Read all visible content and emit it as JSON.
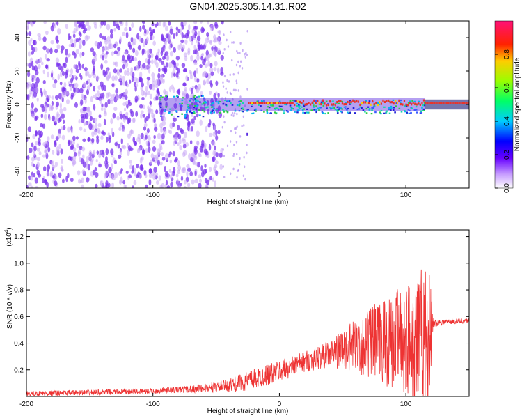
{
  "title": "GN04.2025.305.14.31.R02",
  "colors": {
    "snr_line": "#ee3333",
    "scatter": "#7a33ee",
    "ridge": "#e8342a"
  },
  "chart_data": [
    {
      "type": "heatmap",
      "name": "spectrogram",
      "xlabel": "Height of straight line (km)",
      "ylabel": "Frequency (Hz)",
      "xlim": [
        -200,
        150
      ],
      "ylim": [
        -50,
        50
      ],
      "xticks": [
        -200,
        -100,
        0,
        100
      ],
      "xtick_labels": [
        "-200",
        "-100",
        "0",
        "100"
      ],
      "yticks": [
        -40,
        -20,
        0,
        20,
        40
      ],
      "ytick_labels": [
        "-40",
        "-20",
        "0",
        "20",
        "40"
      ],
      "colorbar": {
        "label": "Normalized spectral amplitude",
        "range": [
          0,
          1
        ],
        "ticks": [
          0.0,
          0.2,
          0.4,
          0.6,
          0.8
        ],
        "tick_labels": [
          "0.0",
          "0.2",
          "0.4",
          "0.6",
          "0.8"
        ]
      },
      "regions": [
        {
          "x_range": [
            -200,
            -45
          ],
          "description": "dense noise scatter, amplitude ~0.1-0.2"
        },
        {
          "x_range": [
            -45,
            -25
          ],
          "description": "sparse scatter"
        },
        {
          "x_range": [
            -95,
            115
          ],
          "description": "signal band near 0 Hz, amplitude 0.2-0.6"
        },
        {
          "x_range": [
            -25,
            150
          ],
          "description": "peak ridge at ~1 Hz, amplitude ~0.9"
        }
      ]
    },
    {
      "type": "line",
      "name": "snr",
      "xlabel": "Height of straight line (km)",
      "ylabel": "SNR (10 * v/v)",
      "multiplier_label": "(x10",
      "multiplier_exp": "4",
      "multiplier_close": ")",
      "xlim": [
        -200,
        150
      ],
      "ylim": [
        0,
        1.25
      ],
      "xticks": [
        -200,
        -100,
        0,
        100
      ],
      "xtick_labels": [
        "-200",
        "-100",
        "0",
        "100"
      ],
      "yticks": [
        0.2,
        0.4,
        0.6,
        0.8,
        1.0,
        1.2
      ],
      "ytick_labels": [
        "0.2",
        "0.4",
        "0.6",
        "0.8",
        "1.0",
        "1.2"
      ],
      "series": [
        {
          "name": "SNR",
          "x": [
            -200,
            -150,
            -100,
            -60,
            -40,
            -20,
            0,
            20,
            40,
            60,
            80,
            100,
            110,
            118,
            122,
            130,
            150
          ],
          "y_mean": [
            0.02,
            0.03,
            0.04,
            0.06,
            0.08,
            0.13,
            0.19,
            0.26,
            0.32,
            0.38,
            0.41,
            0.43,
            0.44,
            0.45,
            0.55,
            0.56,
            0.57
          ],
          "y_spread": [
            0.02,
            0.02,
            0.02,
            0.03,
            0.05,
            0.08,
            0.08,
            0.08,
            0.1,
            0.2,
            0.32,
            0.42,
            0.55,
            0.55,
            0.03,
            0.02,
            0.02
          ]
        }
      ]
    }
  ]
}
